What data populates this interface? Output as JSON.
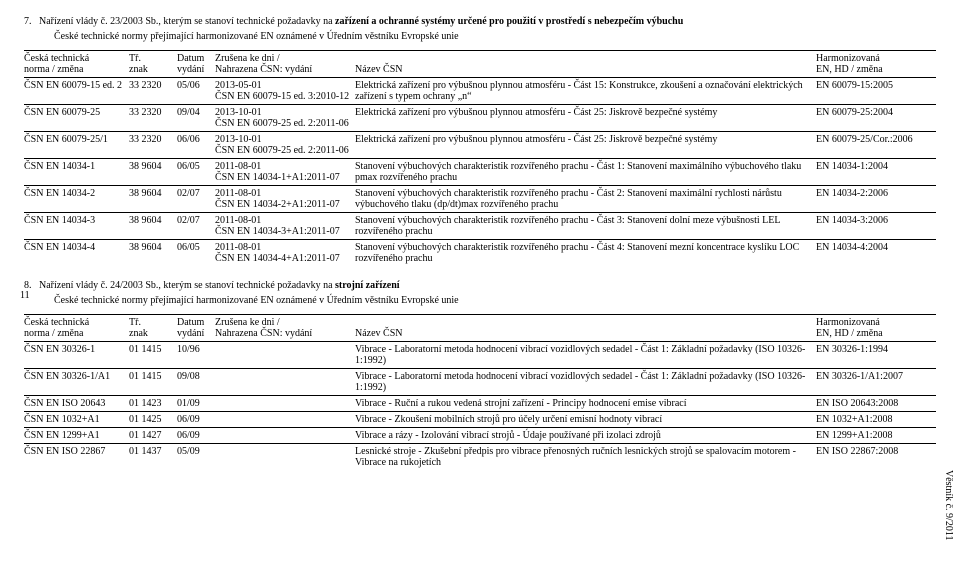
{
  "section1": {
    "heading": "7.   Nařízení vlády č. 23/2003 Sb., kterým se stanoví technické požadavky na zařízení a ochranné systémy určené pro použití v prostředí s nebezpečím výbuchu",
    "sub": "České technické normy přejímající harmonizované EN oznámené v Úředním věstníku Evropské unie",
    "headers": {
      "c1a": "Česká technická",
      "c1b": "norma / změna",
      "c2a": "Tř.",
      "c2b": "znak",
      "c3a": "Datum",
      "c3b": "vydání",
      "c4a": "Zrušena ke dni /",
      "c4b": "Nahrazena ČSN: vydání",
      "c5a": "Název ČSN",
      "c5b": "",
      "c6a": "Harmonizovaná",
      "c6b": "EN, HD / změna"
    },
    "rows": [
      {
        "c1": "ČSN EN 60079-15 ed. 2",
        "c2": "33 2320",
        "c3": "05/06",
        "c4": "2013-05-01\nČSN EN 60079-15 ed. 3:2010-12",
        "c5": "Elektrická zařízení pro výbušnou plynnou atmosféru - Část 15: Konstrukce, zkoušení a označování elektrických zařízení s typem ochrany „n“",
        "c6": "EN 60079-15:2005"
      },
      {
        "c1": "ČSN EN 60079-25",
        "c2": "33 2320",
        "c3": "09/04",
        "c4": "2013-10-01\nČSN EN 60079-25 ed. 2:2011-06",
        "c5": "Elektrická zařízení pro výbušnou plynnou atmosféru - Část 25: Jiskrově bezpečné systémy",
        "c6": "EN 60079-25:2004"
      },
      {
        "c1": "ČSN EN 60079-25/1",
        "c2": "33 2320",
        "c3": "06/06",
        "c4": "2013-10-01\nČSN EN 60079-25 ed. 2:2011-06",
        "c5": "Elektrická zařízení pro výbušnou plynnou atmosféru - Část 25: Jiskrově bezpečné systémy",
        "c6": "EN 60079-25/Cor.:2006"
      },
      {
        "c1": "ČSN EN 14034-1",
        "c2": "38 9604",
        "c3": "06/05",
        "c4": "2011-08-01\nČSN EN 14034-1+A1:2011-07",
        "c5": "Stanovení výbuchových charakteristik rozvířeného prachu - Část 1: Stanovení maximálního výbuchového tlaku pmax rozvířeného prachu",
        "c6": "EN 14034-1:2004"
      },
      {
        "c1": "ČSN EN 14034-2",
        "c2": "38 9604",
        "c3": "02/07",
        "c4": "2011-08-01\nČSN EN 14034-2+A1:2011-07",
        "c5": "Stanovení výbuchových charakteristik rozvířeného prachu - Část 2: Stanovení maximální rychlosti nárůstu výbuchového tlaku (dp/dt)max rozvířeného prachu",
        "c6": "EN 14034-2:2006"
      },
      {
        "c1": "ČSN EN 14034-3",
        "c2": "38 9604",
        "c3": "02/07",
        "c4": "2011-08-01\nČSN EN 14034-3+A1:2011-07",
        "c5": "Stanovení výbuchových charakteristik rozvířeného prachu - Část 3: Stanovení dolní meze výbušnosti LEL rozvířeného prachu",
        "c6": "EN 14034-3:2006"
      },
      {
        "c1": "ČSN EN 14034-4",
        "c2": "38 9604",
        "c3": "06/05",
        "c4": "2011-08-01\nČSN EN 14034-4+A1:2011-07",
        "c5": "Stanovení výbuchových charakteristik rozvířeného prachu - Část 4: Stanovení mezní koncentrace kyslíku LOC rozvířeného prachu",
        "c6": "EN 14034-4:2004"
      }
    ]
  },
  "section2": {
    "heading": "8.   Nařízení vlády č. 24/2003 Sb., kterým se stanoví technické požadavky na strojní zařízení",
    "sub": "České technické normy přejímající harmonizované EN oznámené v Úředním věstníku Evropské unie",
    "headers": {
      "c1a": "Česká technická",
      "c1b": "norma / změna",
      "c2a": "Tř.",
      "c2b": "znak",
      "c3a": "Datum",
      "c3b": "vydání",
      "c4a": "Zrušena ke dni /",
      "c4b": "Nahrazena ČSN: vydání",
      "c5a": "Název ČSN",
      "c5b": "",
      "c6a": "Harmonizovaná",
      "c6b": "EN, HD / změna"
    },
    "rows": [
      {
        "c1": "ČSN EN 30326-1",
        "c2": "01 1415",
        "c3": "10/96",
        "c4": "",
        "c5": "Vibrace - Laboratorní metoda hodnocení vibrací vozidlových sedadel - Část 1: Základní požadavky (ISO 10326-1:1992)",
        "c6": "EN 30326-1:1994"
      },
      {
        "c1": "ČSN EN 30326-1/A1",
        "c2": "01 1415",
        "c3": "09/08",
        "c4": "",
        "c5": "Vibrace - Laboratorní metoda hodnocení vibrací vozidlových sedadel - Část 1: Základní požadavky (ISO 10326-1:1992)",
        "c6": "EN 30326-1/A1:2007"
      },
      {
        "c1": "ČSN EN ISO 20643",
        "c2": "01 1423",
        "c3": "01/09",
        "c4": "",
        "c5": "Vibrace - Ruční a rukou vedená strojní zařízení - Principy hodnocení emise vibrací",
        "c6": "EN ISO 20643:2008"
      },
      {
        "c1": "ČSN EN 1032+A1",
        "c2": "01 1425",
        "c3": "06/09",
        "c4": "",
        "c5": "Vibrace - Zkoušení mobilních strojů pro účely určení emisní hodnoty vibrací",
        "c6": "EN 1032+A1:2008"
      },
      {
        "c1": "ČSN EN 1299+A1",
        "c2": "01 1427",
        "c3": "06/09",
        "c4": "",
        "c5": "Vibrace a rázy - Izolování vibrací strojů - Údaje používané při izolaci zdrojů",
        "c6": "EN 1299+A1:2008"
      },
      {
        "c1": "ČSN EN ISO 22867",
        "c2": "01 1437",
        "c3": "05/09",
        "c4": "",
        "c5": "Lesnické stroje - Zkušební předpis pro vibrace přenosných ručních lesnických strojů se spalovacím motorem - Vibrace na rukojetích",
        "c6": "EN ISO 22867:2008"
      }
    ]
  },
  "pageNum": "11",
  "vertical": "Věstník č. 9/2011"
}
